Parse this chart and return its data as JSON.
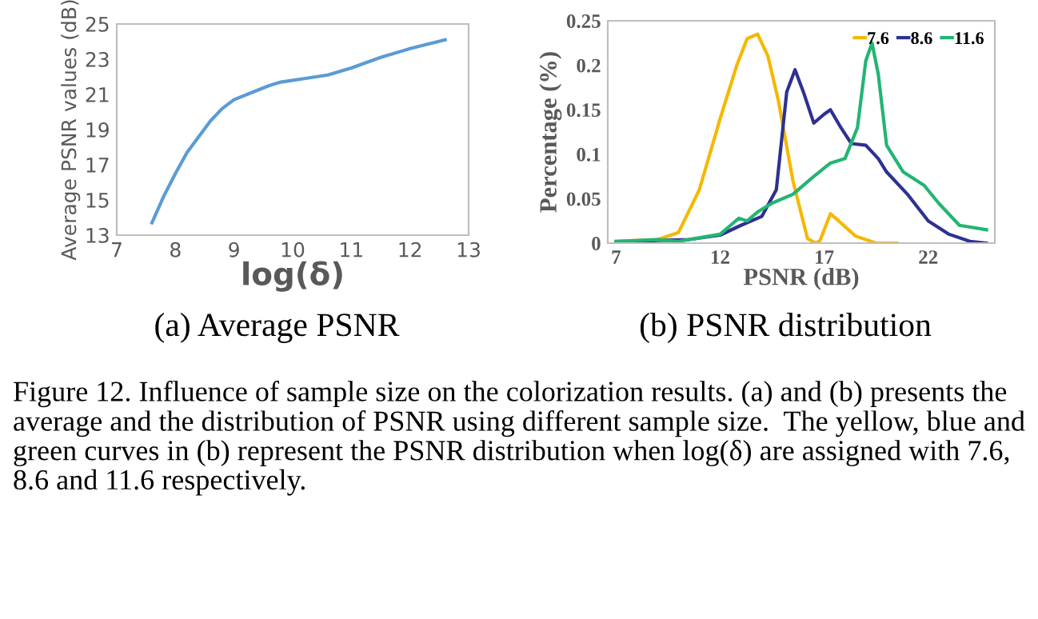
{
  "chart_data": [
    {
      "type": "line",
      "xlabel": "log(δ)",
      "ylabel": "Average PSNR values (dB)",
      "xlim": [
        7,
        13
      ],
      "xticks": [
        7,
        8,
        9,
        10,
        11,
        12,
        13
      ],
      "ylim": [
        13,
        25
      ],
      "yticks": [
        13,
        15,
        17,
        19,
        21,
        23,
        25
      ],
      "grid": false,
      "legend": false,
      "annotations": [
        "(a) Average PSNR"
      ],
      "series": [
        {
          "color": "#5b9bd5",
          "x": [
            7.6,
            7.8,
            8.0,
            8.2,
            8.4,
            8.6,
            8.8,
            9.0,
            9.3,
            9.6,
            9.8,
            10.2,
            10.6,
            11.0,
            11.5,
            12.0,
            12.6
          ],
          "values": [
            13.7,
            15.2,
            16.5,
            17.7,
            18.6,
            19.5,
            20.2,
            20.7,
            21.1,
            21.5,
            21.7,
            21.9,
            22.1,
            22.5,
            23.1,
            23.6,
            24.1
          ]
        }
      ]
    },
    {
      "type": "line",
      "xlabel": "PSNR (dB)",
      "ylabel": "Percentage (%)",
      "xlim": [
        6.6,
        25.2
      ],
      "xticks": [
        7,
        12,
        17,
        22
      ],
      "ylim": [
        0,
        0.25
      ],
      "yticks": [
        0,
        0.05,
        0.1,
        0.15,
        0.2,
        0.25
      ],
      "grid": false,
      "legend": "top right",
      "annotations": [
        "(b) PSNR distribution",
        "Figure 12. Influence of sample size on the colorization results. (a) and (b) presents the average and the distribution of PSNR using different sample size.  The yellow, blue and green curves in (b) represent the PSNR distribution when log(δ) are assigned with 7.6, 8.6 and 11.6 respectively."
      ],
      "series": [
        {
          "name": "7.6",
          "color": "#f5b800",
          "x": [
            7,
            9,
            10,
            11,
            12,
            12.8,
            13.3,
            13.8,
            14.3,
            14.8,
            15.5,
            16.2,
            16.6,
            16.8,
            17.3,
            17.7,
            18.5,
            19.5,
            20.5
          ],
          "values": [
            0.002,
            0.004,
            0.012,
            0.06,
            0.14,
            0.2,
            0.23,
            0.235,
            0.21,
            0.16,
            0.07,
            0.005,
            0,
            0.003,
            0.033,
            0.025,
            0.008,
            0,
            0
          ]
        },
        {
          "name": "8.6",
          "color": "#2e3192",
          "x": [
            7,
            9,
            10.5,
            12,
            13,
            14,
            14.7,
            15.2,
            15.6,
            16.0,
            16.5,
            17,
            17.3,
            17.8,
            18.3,
            19,
            19.6,
            20,
            21,
            22,
            23,
            24,
            24.8
          ],
          "values": [
            0,
            0.003,
            0.004,
            0.009,
            0.02,
            0.03,
            0.06,
            0.17,
            0.195,
            0.17,
            0.135,
            0.145,
            0.15,
            0.13,
            0.112,
            0.11,
            0.095,
            0.08,
            0.055,
            0.025,
            0.01,
            0.002,
            0
          ]
        },
        {
          "name": "11.6",
          "color": "#22b573",
          "x": [
            7,
            9,
            10,
            11,
            12,
            12.5,
            12.9,
            13.3,
            13.8,
            14.5,
            15.5,
            16.5,
            17.3,
            18,
            18.6,
            19.0,
            19.3,
            19.6,
            20,
            20.8,
            21.8,
            22.5,
            23.5,
            24.8
          ],
          "values": [
            0.002,
            0.004,
            0.002,
            0.006,
            0.01,
            0.02,
            0.028,
            0.025,
            0.035,
            0.045,
            0.055,
            0.075,
            0.09,
            0.095,
            0.13,
            0.205,
            0.225,
            0.19,
            0.11,
            0.08,
            0.065,
            0.045,
            0.02,
            0.015
          ]
        }
      ]
    }
  ]
}
